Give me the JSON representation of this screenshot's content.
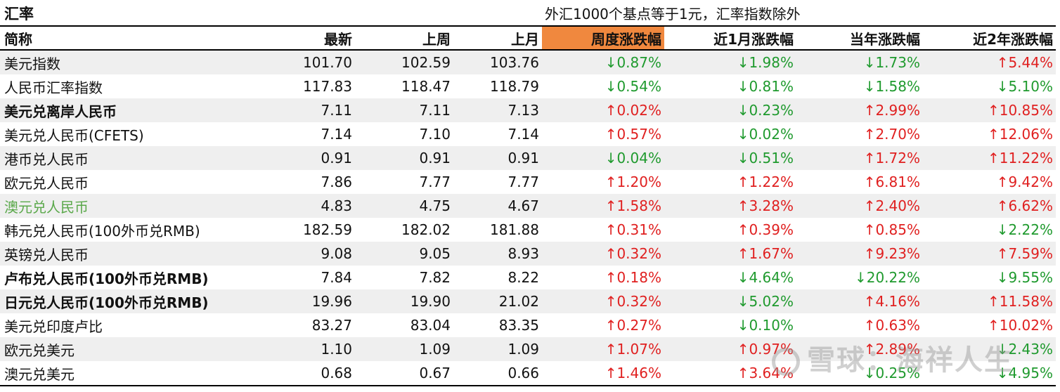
{
  "title": "汇率",
  "note": "外汇1000个基点等于1元，汇率指数除外",
  "headers": [
    "简称",
    "最新",
    "上周",
    "上月",
    "周度涨跌幅",
    "近1月涨跌幅",
    "当年涨跌幅",
    "近2年涨跌幅"
  ],
  "colors": {
    "up": "#e02020",
    "down": "#1f9a2e",
    "highlight_header": "#f0883e",
    "stripe": "#efefef",
    "name_highlight": "#5aa84a"
  },
  "rows": [
    {
      "name": "美元指数",
      "latest": "101.70",
      "last_week": "102.59",
      "last_month": "103.76",
      "wk": "↓0.87%",
      "m1": "↓1.98%",
      "ytd": "↓1.73%",
      "y2": "↑5.44%"
    },
    {
      "name": "人民币汇率指数",
      "latest": "117.83",
      "last_week": "118.47",
      "last_month": "118.79",
      "wk": "↓0.54%",
      "m1": "↓0.81%",
      "ytd": "↓1.58%",
      "y2": "↓5.10%"
    },
    {
      "name": "美元兑离岸人民币",
      "latest": "7.11",
      "last_week": "7.11",
      "last_month": "7.13",
      "wk": "↑0.02%",
      "m1": "↓0.23%",
      "ytd": "↑2.99%",
      "y2": "↑10.85%"
    },
    {
      "name": "美元兑人民币(CFETS)",
      "latest": "7.14",
      "last_week": "7.10",
      "last_month": "7.14",
      "wk": "↑0.57%",
      "m1": "↓0.02%",
      "ytd": "↑2.70%",
      "y2": "↑12.06%"
    },
    {
      "name": "港币兑人民币",
      "latest": "0.91",
      "last_week": "0.91",
      "last_month": "0.91",
      "wk": "↓0.04%",
      "m1": "↓0.51%",
      "ytd": "↑1.72%",
      "y2": "↑11.22%"
    },
    {
      "name": "欧元兑人民币",
      "latest": "7.86",
      "last_week": "7.77",
      "last_month": "7.77",
      "wk": "↑1.20%",
      "m1": "↑1.22%",
      "ytd": "↑6.81%",
      "y2": "↑9.42%"
    },
    {
      "name": "澳元兑人民币",
      "latest": "4.83",
      "last_week": "4.75",
      "last_month": "4.67",
      "wk": "↑1.58%",
      "m1": "↑3.28%",
      "ytd": "↑2.40%",
      "y2": "↑6.62%"
    },
    {
      "name": "韩元兑人民币(100外币兑RMB)",
      "latest": "182.59",
      "last_week": "182.02",
      "last_month": "181.88",
      "wk": "↑0.31%",
      "m1": "↑0.39%",
      "ytd": "↑0.85%",
      "y2": "↓2.22%"
    },
    {
      "name": "英镑兑人民币",
      "latest": "9.08",
      "last_week": "9.05",
      "last_month": "8.93",
      "wk": "↑0.32%",
      "m1": "↑1.67%",
      "ytd": "↑9.23%",
      "y2": "↑7.59%"
    },
    {
      "name": "卢布兑人民币(100外币兑RMB)",
      "latest": "7.84",
      "last_week": "7.82",
      "last_month": "8.22",
      "wk": "↑0.18%",
      "m1": "↓4.64%",
      "ytd": "↓20.22%",
      "y2": "↓9.55%"
    },
    {
      "name": "日元兑人民币(100外币兑RMB)",
      "latest": "19.96",
      "last_week": "19.90",
      "last_month": "21.02",
      "wk": "↑0.32%",
      "m1": "↓5.02%",
      "ytd": "↑4.16%",
      "y2": "↑11.58%"
    },
    {
      "name": "美元兑印度卢比",
      "latest": "83.27",
      "last_week": "83.04",
      "last_month": "83.35",
      "wk": "↑0.27%",
      "m1": "↓0.10%",
      "ytd": "↑0.63%",
      "y2": "↑10.02%"
    },
    {
      "name": "欧元兑美元",
      "latest": "1.10",
      "last_week": "1.09",
      "last_month": "1.09",
      "wk": "↑1.07%",
      "m1": "↑0.97%",
      "ytd": "↑2.89%",
      "y2": "↓2.43%"
    },
    {
      "name": "澳元兑美元",
      "latest": "0.68",
      "last_week": "0.67",
      "last_month": "0.66",
      "wk": "↑1.46%",
      "m1": "↑3.64%",
      "ytd": "↓0.25%",
      "y2": "↓4.95%"
    }
  ],
  "watermark": "雪球：海祥人生"
}
